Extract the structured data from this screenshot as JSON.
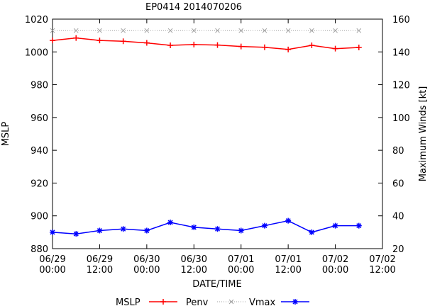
{
  "chart_data": {
    "type": "line",
    "title": "EP0414 2014070206",
    "xlabel": "DATE/TIME",
    "ylabel": "MSLP",
    "y2label": "Maximum Winds [kt]",
    "ylim": [
      880,
      1020
    ],
    "y2lim": [
      20,
      160
    ],
    "yticks": [
      "880",
      "900",
      "920",
      "940",
      "960",
      "980",
      "1000",
      "1020"
    ],
    "y2ticks": [
      "20",
      "40",
      "60",
      "80",
      "100",
      "120",
      "140",
      "160"
    ],
    "xlim_hours": [
      0,
      84
    ],
    "xticks": [
      {
        "date": "06/29",
        "time": "00:00"
      },
      {
        "date": "06/29",
        "time": "12:00"
      },
      {
        "date": "06/30",
        "time": "00:00"
      },
      {
        "date": "06/30",
        "time": "12:00"
      },
      {
        "date": "07/01",
        "time": "00:00"
      },
      {
        "date": "07/01",
        "time": "12:00"
      },
      {
        "date": "07/02",
        "time": "00:00"
      },
      {
        "date": "07/02",
        "time": "12:00"
      }
    ],
    "x_hours": [
      0,
      6,
      12,
      18,
      24,
      30,
      36,
      42,
      48,
      54,
      60,
      66,
      72,
      78
    ],
    "series": [
      {
        "name": "MSLP",
        "axis": "left",
        "color": "#ff0000",
        "values": [
          1007,
          1008.5,
          1007,
          1006.5,
          1005.5,
          1004,
          1004.5,
          1004.2,
          1003.3,
          1002.8,
          1001.5,
          1004,
          1002,
          1002.7
        ]
      },
      {
        "name": "Penv",
        "axis": "left",
        "color": "#a0a0a0",
        "values": [
          1013,
          1013,
          1013,
          1013,
          1013,
          1013,
          1013,
          1013,
          1013,
          1013,
          1013,
          1013,
          1013,
          1013
        ]
      },
      {
        "name": "Vmax",
        "axis": "right",
        "color": "#0000ff",
        "values": [
          30,
          29,
          31,
          32,
          31,
          36,
          33,
          32,
          31,
          34,
          37,
          30,
          34,
          34
        ]
      }
    ],
    "legend": {
      "position": "bottom",
      "labels": [
        "MSLP",
        "Penv",
        "Vmax"
      ]
    }
  }
}
